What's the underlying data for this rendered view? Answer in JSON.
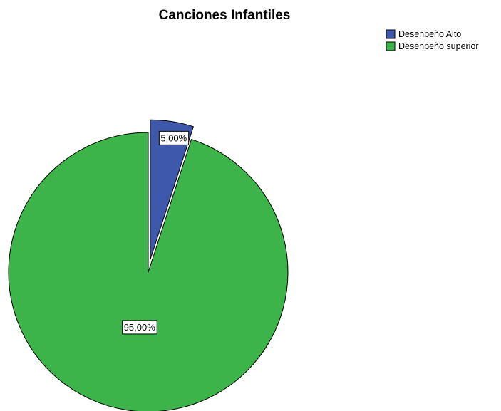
{
  "chart_data": {
    "type": "pie",
    "title": "Canciones Infantiles",
    "legend_position": "top-right",
    "categories": [
      "Desenpeño Alto",
      "Desenpeño superior"
    ],
    "values": [
      5.0,
      95.0
    ],
    "data_labels": [
      "5,00%",
      "95,00%"
    ],
    "colors": [
      "#3e58ac",
      "#3cb44a"
    ],
    "exploded": [
      true,
      false
    ]
  }
}
